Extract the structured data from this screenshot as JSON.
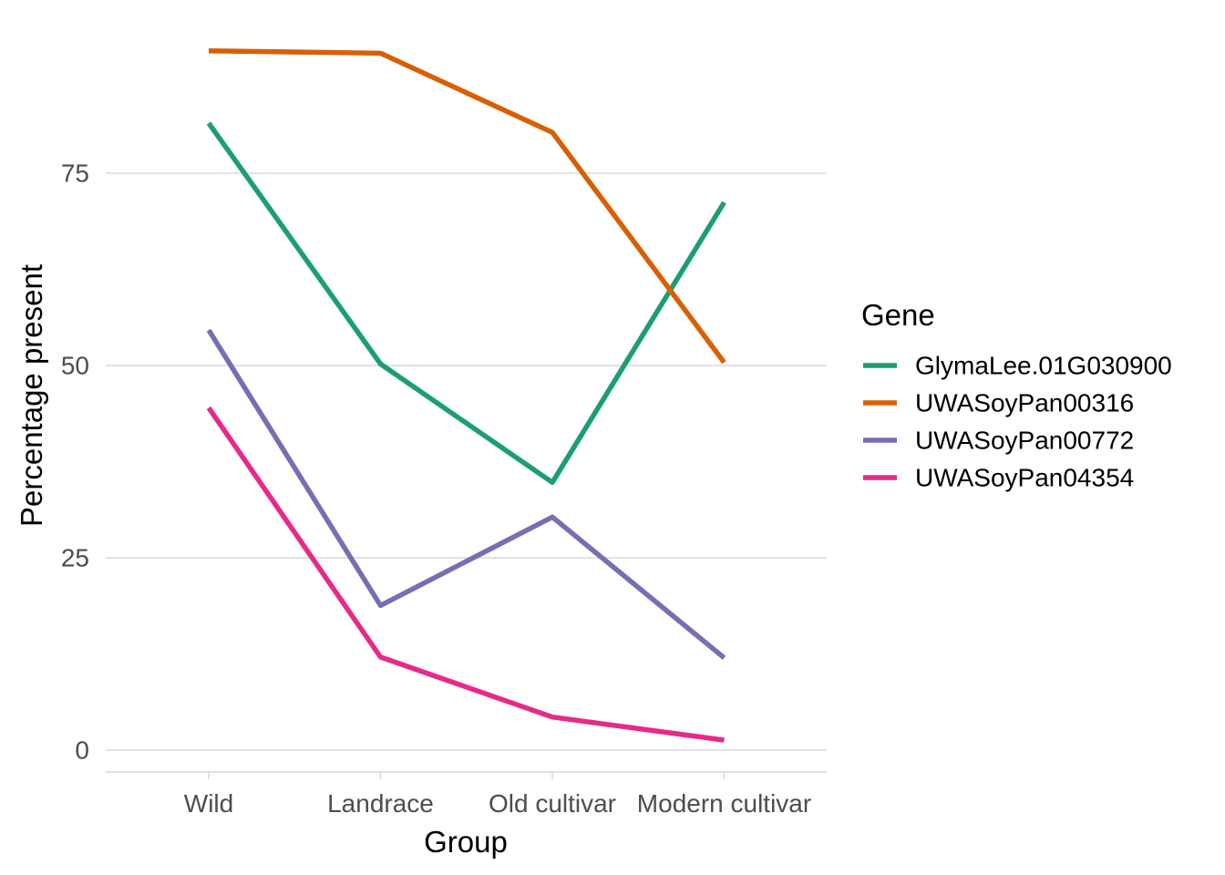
{
  "chart_data": {
    "type": "line",
    "title": "",
    "xlabel": "Group",
    "ylabel": "Percentage present",
    "categories": [
      "Wild",
      "Landrace",
      "Old cultivar",
      "Modern cultivar"
    ],
    "ylim": [
      -3,
      93
    ],
    "yticks": [
      0,
      25,
      50,
      75
    ],
    "grid": true,
    "legend": {
      "title": "Gene",
      "position": "right"
    },
    "series": [
      {
        "name": "GlymaLee.01G030900",
        "color": "#1B9E77",
        "values": [
          81.5,
          50.2,
          34.8,
          71.2
        ]
      },
      {
        "name": "UWASoyPan00316",
        "color": "#D95F02",
        "values": [
          90.9,
          90.6,
          80.3,
          50.4
        ]
      },
      {
        "name": "UWASoyPan00772",
        "color": "#7570B3",
        "values": [
          54.6,
          18.8,
          30.3,
          12.0
        ]
      },
      {
        "name": "UWASoyPan04354",
        "color": "#E7298A",
        "values": [
          44.5,
          12.1,
          4.3,
          1.3
        ]
      }
    ]
  }
}
